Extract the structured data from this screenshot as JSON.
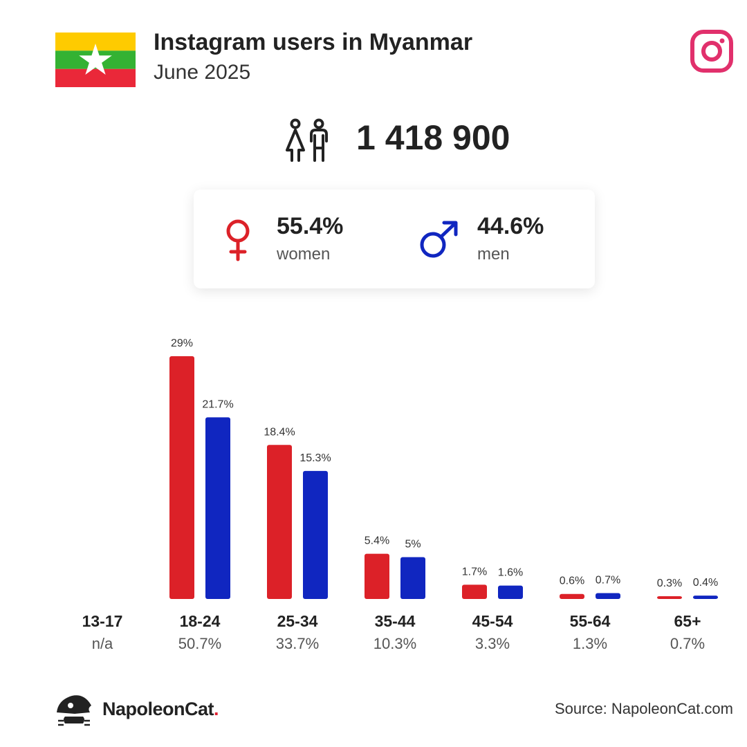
{
  "header": {
    "title": "Instagram users in Myanmar",
    "subtitle": "June 2025"
  },
  "flag": {
    "colors": [
      "#FECB00",
      "#34B233",
      "#EA2839"
    ],
    "star": "#FFFFFF"
  },
  "social_icon": "instagram-icon",
  "total": {
    "icon": "users-icon",
    "value": "1 418 900"
  },
  "gender": {
    "women": {
      "icon": "female-symbol-icon",
      "pct": "55.4%",
      "label": "women",
      "color": "#DC2128"
    },
    "men": {
      "icon": "male-symbol-icon",
      "pct": "44.6%",
      "label": "men",
      "color": "#1026C0"
    }
  },
  "chart_data": {
    "type": "bar",
    "categories": [
      "13-17",
      "18-24",
      "25-34",
      "35-44",
      "45-54",
      "55-64",
      "65+"
    ],
    "category_totals": [
      "n/a",
      "50.7%",
      "33.7%",
      "10.3%",
      "3.3%",
      "1.3%",
      "0.7%"
    ],
    "series": [
      {
        "name": "women",
        "color": "#DC2128",
        "values": [
          null,
          29,
          18.4,
          5.4,
          1.7,
          0.6,
          0.3
        ],
        "labels": [
          "",
          "29%",
          "18.4%",
          "5.4%",
          "1.7%",
          "0.6%",
          "0.3%"
        ]
      },
      {
        "name": "men",
        "color": "#1026C0",
        "values": [
          null,
          21.7,
          15.3,
          5,
          1.6,
          0.7,
          0.4
        ],
        "labels": [
          "",
          "21.7%",
          "15.3%",
          "5%",
          "1.6%",
          "0.7%",
          "0.4%"
        ]
      }
    ],
    "ylim": [
      0,
      29
    ],
    "grid": false
  },
  "footer": {
    "brand_name": "NapoleonCat",
    "brand_dot": ".",
    "source": "Source: NapoleonCat.com"
  }
}
